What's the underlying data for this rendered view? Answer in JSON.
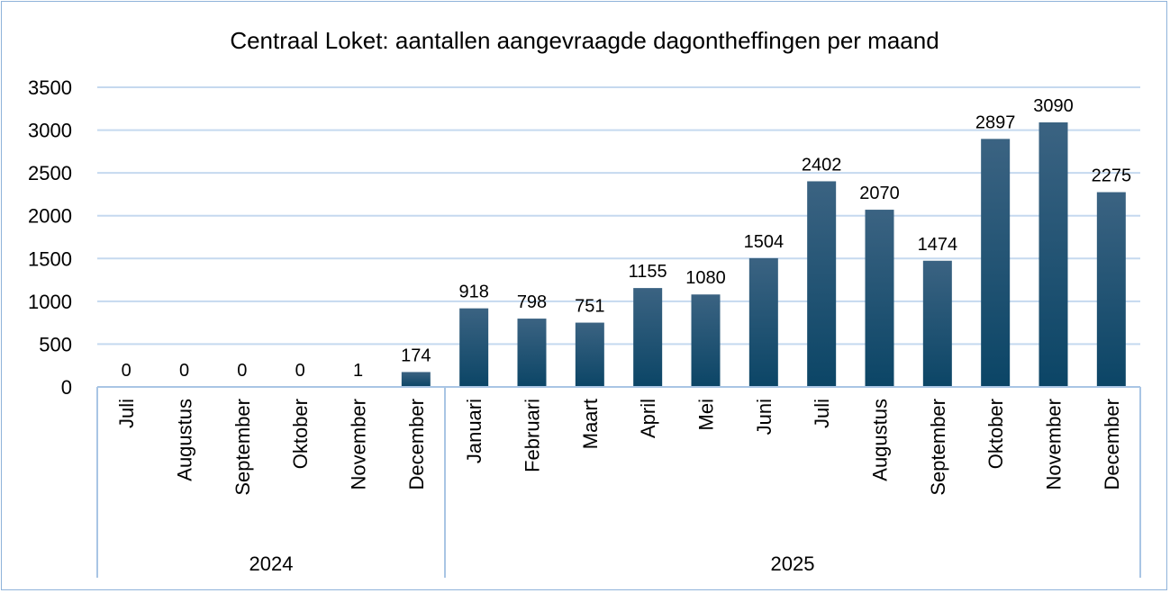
{
  "chart_data": {
    "type": "bar",
    "title": "Centraal Loket: aantallen aangevraagde dagontheffingen per maand",
    "xlabel": "",
    "ylabel": "",
    "ylim": [
      0,
      3500
    ],
    "yticks": [
      "0",
      "500",
      "1000",
      "1500",
      "2000",
      "2500",
      "3000",
      "3500"
    ],
    "grid": true,
    "legend": "none",
    "categories": [
      "Juli",
      "Augustus",
      "September",
      "Oktober",
      "November",
      "December",
      "Januari",
      "Februari",
      "Maart",
      "April",
      "Mei",
      "Juni",
      "Juli",
      "Augustus",
      "September",
      "Oktober",
      "November",
      "December"
    ],
    "values": [
      0,
      0,
      0,
      0,
      1,
      174,
      918,
      798,
      751,
      1155,
      1080,
      1504,
      2402,
      2070,
      1474,
      2897,
      3090,
      2275
    ],
    "groups": [
      {
        "label": "2024",
        "start": 0,
        "end": 5
      },
      {
        "label": "2025",
        "start": 6,
        "end": 17
      }
    ],
    "colors": {
      "bar_top": "#3b6382",
      "bar_bottom": "#0b4566",
      "grid": "#c5d9ef",
      "axis": "#a9c5e4"
    }
  }
}
